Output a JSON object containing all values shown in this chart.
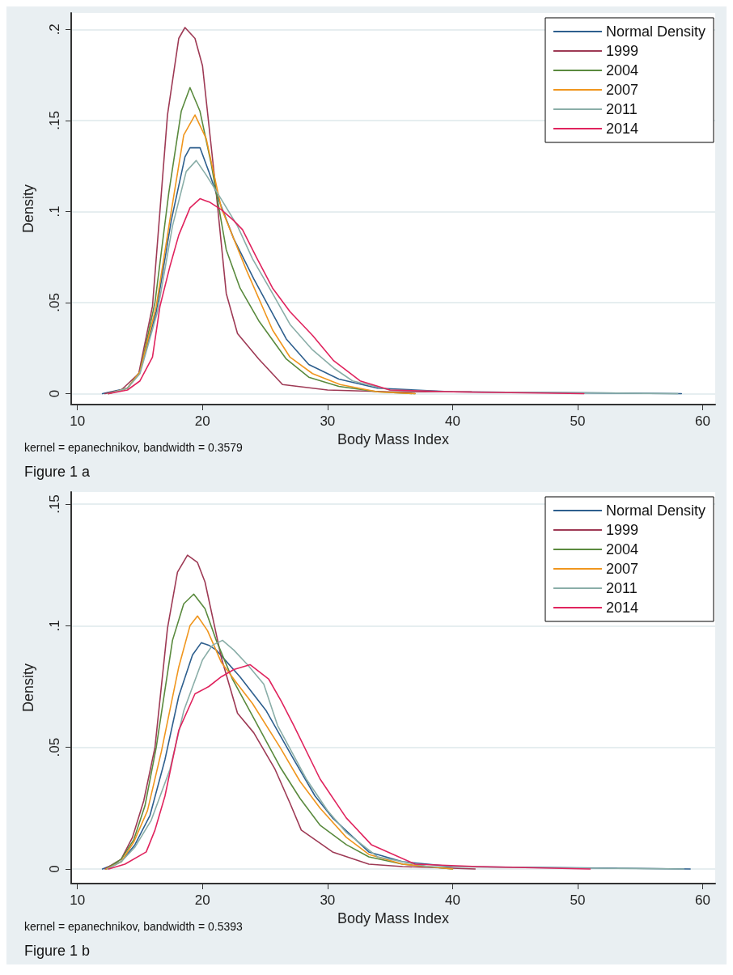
{
  "chart_data": [
    {
      "type": "line",
      "xlabel": "Body Mass Index",
      "ylabel": "Density",
      "xlim": [
        9.5,
        61
      ],
      "xticks": [
        10,
        20,
        30,
        40,
        50,
        60
      ],
      "ylim": [
        -0.006,
        0.209
      ],
      "yticks": [
        0,
        {
          "value": 0.05,
          "label": ".05"
        },
        {
          "value": 0.1,
          "label": ".1"
        },
        {
          "value": 0.15,
          "label": ".15"
        },
        {
          "value": 0.2,
          "label": ".2"
        }
      ],
      "grid": "y",
      "legend": "top right",
      "line_style": "solid",
      "marker": "none",
      "annotations": [
        "kernel = epanechnikov, bandwidth = 0.3579",
        "Figure 1 a"
      ],
      "series": [
        {
          "name": "Normal Density",
          "color": "#2e5f8e",
          "x": [
            12,
            14,
            15,
            16.3,
            17.5,
            18.6,
            19,
            19.8,
            20.5,
            21.1,
            22.5,
            24.1,
            26.7,
            28.5,
            30.9,
            34,
            40,
            58.3
          ],
          "values": [
            0,
            0.003,
            0.012,
            0.045,
            0.095,
            0.13,
            0.135,
            0.135,
            0.122,
            0.11,
            0.085,
            0.063,
            0.03,
            0.016,
            0.008,
            0.003,
            0.001,
            0
          ]
        },
        {
          "name": "1999",
          "color": "#9e3a55",
          "x": [
            12.2,
            13.5,
            14.9,
            16,
            17.2,
            18.1,
            18.6,
            19.4,
            20,
            21.1,
            21.9,
            22.8,
            24.5,
            26.4,
            30,
            35,
            41.5
          ],
          "values": [
            0,
            0.002,
            0.011,
            0.048,
            0.153,
            0.195,
            0.201,
            0.195,
            0.18,
            0.11,
            0.055,
            0.033,
            0.019,
            0.005,
            0.002,
            0.001,
            0.001
          ]
        },
        {
          "name": "2004",
          "color": "#5a8a3e",
          "x": [
            12.5,
            14,
            15,
            16.2,
            17.3,
            18.3,
            19,
            19.8,
            20.7,
            21.9,
            23,
            24.5,
            26.7,
            28.5,
            30.9,
            34,
            37
          ],
          "values": [
            0,
            0.003,
            0.012,
            0.05,
            0.11,
            0.155,
            0.168,
            0.155,
            0.126,
            0.079,
            0.058,
            0.04,
            0.019,
            0.009,
            0.004,
            0.001,
            0
          ]
        },
        {
          "name": "2007",
          "color": "#f0961e",
          "x": [
            12.5,
            14,
            15,
            16.3,
            17.5,
            18.5,
            19.4,
            20.3,
            21.5,
            23.5,
            25.6,
            27,
            28.8,
            31,
            34,
            37
          ],
          "values": [
            0,
            0.003,
            0.012,
            0.048,
            0.1,
            0.142,
            0.153,
            0.14,
            0.102,
            0.068,
            0.035,
            0.02,
            0.011,
            0.005,
            0.001,
            0
          ]
        },
        {
          "name": "2011",
          "color": "#8aaea8",
          "x": [
            12.5,
            14,
            15,
            16.4,
            17.6,
            18.7,
            19.5,
            20.3,
            21.3,
            22.8,
            24,
            25.6,
            27,
            28.8,
            30.5,
            32,
            35,
            40,
            58
          ],
          "values": [
            0,
            0.003,
            0.011,
            0.045,
            0.092,
            0.122,
            0.128,
            0.12,
            0.109,
            0.092,
            0.074,
            0.055,
            0.038,
            0.024,
            0.014,
            0.007,
            0.002,
            0.001,
            0
          ]
        },
        {
          "name": "2014",
          "color": "#e0245e",
          "x": [
            12.5,
            14,
            15,
            16,
            16.6,
            17.4,
            18.1,
            19,
            19.8,
            20.6,
            21.5,
            22.5,
            23.2,
            24.3,
            25.6,
            27,
            28.8,
            30.5,
            32.6,
            35,
            40,
            50.5
          ],
          "values": [
            0,
            0.002,
            0.007,
            0.02,
            0.048,
            0.07,
            0.087,
            0.102,
            0.107,
            0.105,
            0.101,
            0.095,
            0.09,
            0.075,
            0.058,
            0.045,
            0.032,
            0.018,
            0.007,
            0.002,
            0.001,
            0
          ]
        }
      ]
    },
    {
      "type": "line",
      "xlabel": "Body Mass Index",
      "ylabel": "Density",
      "xlim": [
        9.5,
        61
      ],
      "xticks": [
        10,
        20,
        30,
        40,
        50,
        60
      ],
      "ylim": [
        -0.006,
        0.155
      ],
      "yticks": [
        0,
        {
          "value": 0.05,
          "label": ".05"
        },
        {
          "value": 0.1,
          "label": ".1"
        },
        {
          "value": 0.15,
          "label": ".15"
        }
      ],
      "grid": "y",
      "legend": "top right",
      "line_style": "solid",
      "marker": "none",
      "annotations": [
        "kernel = epanechnikov, bandwidth = 0.5393",
        "Figure 1 b"
      ],
      "series": [
        {
          "name": "Normal Density",
          "color": "#2e5f8e",
          "x": [
            12,
            13.5,
            14.6,
            15.8,
            17,
            18.1,
            19.2,
            19.9,
            20.5,
            21.1,
            23,
            25.1,
            27.3,
            29,
            30.4,
            33.3,
            36,
            40,
            59
          ],
          "values": [
            0,
            0.003,
            0.01,
            0.022,
            0.045,
            0.071,
            0.088,
            0.093,
            0.092,
            0.09,
            0.079,
            0.065,
            0.045,
            0.03,
            0.021,
            0.007,
            0.003,
            0.001,
            0
          ]
        },
        {
          "name": "1999",
          "color": "#9e3a55",
          "x": [
            12.2,
            13.5,
            14.4,
            15.3,
            16.2,
            17.2,
            18,
            18.8,
            19.6,
            20.2,
            21.5,
            22.8,
            24.1,
            25.8,
            27,
            27.9,
            30.4,
            33.3,
            36,
            41.8
          ],
          "values": [
            0,
            0.004,
            0.013,
            0.028,
            0.05,
            0.099,
            0.122,
            0.129,
            0.126,
            0.118,
            0.087,
            0.064,
            0.056,
            0.041,
            0.027,
            0.016,
            0.007,
            0.002,
            0.001,
            0
          ]
        },
        {
          "name": "2004",
          "color": "#5a8a3e",
          "x": [
            12.3,
            13.5,
            14.5,
            15.4,
            16.3,
            17.6,
            18.5,
            19.3,
            20.2,
            21.1,
            22.4,
            24.1,
            26.2,
            27.8,
            29.4,
            31.5,
            33.3,
            36,
            40
          ],
          "values": [
            0,
            0.004,
            0.012,
            0.026,
            0.05,
            0.094,
            0.109,
            0.113,
            0.107,
            0.094,
            0.078,
            0.062,
            0.042,
            0.029,
            0.018,
            0.01,
            0.005,
            0.002,
            0
          ]
        },
        {
          "name": "2007",
          "color": "#f0961e",
          "x": [
            12.3,
            13.5,
            14.5,
            15.6,
            16.7,
            18.1,
            19,
            19.6,
            20.4,
            21.5,
            22.8,
            24,
            26.2,
            27.8,
            29.4,
            31.5,
            33.3,
            36,
            40
          ],
          "values": [
            0,
            0.003,
            0.011,
            0.024,
            0.048,
            0.083,
            0.1,
            0.104,
            0.098,
            0.085,
            0.076,
            0.068,
            0.05,
            0.036,
            0.025,
            0.013,
            0.006,
            0.002,
            0
          ]
        },
        {
          "name": "2011",
          "color": "#8aaea8",
          "x": [
            12.4,
            13.5,
            14.6,
            15.9,
            17.4,
            18.5,
            20,
            20.8,
            21.6,
            22.5,
            23.6,
            24.9,
            26,
            28.3,
            30,
            31.5,
            34,
            38,
            58.5
          ],
          "values": [
            0,
            0.003,
            0.009,
            0.02,
            0.041,
            0.065,
            0.086,
            0.092,
            0.094,
            0.09,
            0.084,
            0.076,
            0.059,
            0.037,
            0.024,
            0.015,
            0.005,
            0.001,
            0
          ]
        },
        {
          "name": "2014",
          "color": "#e0245e",
          "x": [
            12.5,
            13.8,
            15.5,
            16.2,
            17,
            18.1,
            19.4,
            20.5,
            21.5,
            22.5,
            23.8,
            25.3,
            26.3,
            27.3,
            29.4,
            31.5,
            33.5,
            37,
            42,
            51
          ],
          "values": [
            0,
            0.002,
            0.007,
            0.016,
            0.03,
            0.057,
            0.072,
            0.075,
            0.079,
            0.082,
            0.084,
            0.078,
            0.069,
            0.059,
            0.037,
            0.021,
            0.01,
            0.002,
            0.001,
            0
          ]
        }
      ]
    }
  ]
}
